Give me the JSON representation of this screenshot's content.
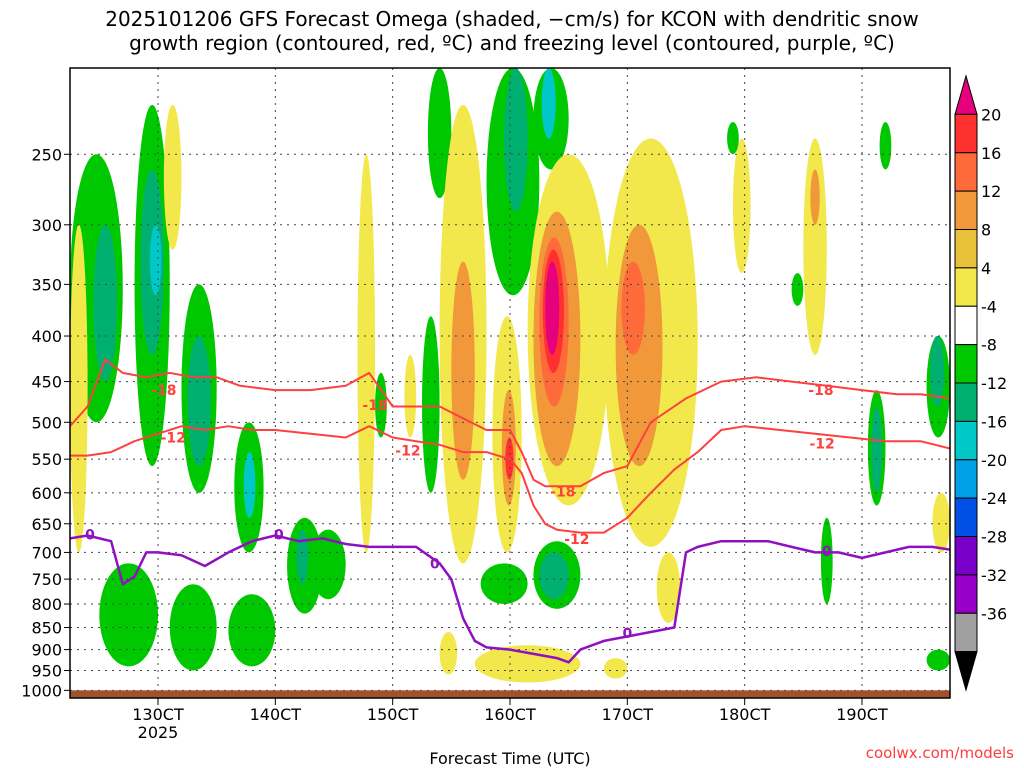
{
  "chart_data": {
    "type": "heatmap",
    "title_line1": "2025101206 GFS Forecast Omega (shaded, −cm/s) for KCON with dendritic snow",
    "title_line2": "growth region (contoured, red, ºC) and freezing level (contoured, purple, ºC)",
    "xlabel": "Forecast Time (UTC)",
    "x_ticks": [
      {
        "value": 130,
        "label": "130CT",
        "sublabel": "2025"
      },
      {
        "value": 140,
        "label": "140CT",
        "sublabel": ""
      },
      {
        "value": 150,
        "label": "150CT",
        "sublabel": ""
      },
      {
        "value": 160,
        "label": "160CT",
        "sublabel": ""
      },
      {
        "value": 170,
        "label": "170CT",
        "sublabel": ""
      },
      {
        "value": 180,
        "label": "180CT",
        "sublabel": ""
      },
      {
        "value": 190,
        "label": "190CT",
        "sublabel": ""
      }
    ],
    "xlim": [
      122.5,
      197.5
    ],
    "y_ticks": [
      250,
      300,
      350,
      400,
      450,
      500,
      550,
      600,
      650,
      700,
      750,
      800,
      850,
      900,
      950,
      1000
    ],
    "ylim": [
      1020,
      200
    ],
    "y_scale": "log-pressure",
    "grid": true,
    "colorbar": {
      "labels": [
        "20",
        "16",
        "12",
        "8",
        "4",
        "-4",
        "-8",
        "-12",
        "-16",
        "-20",
        "-24",
        "-28",
        "-32",
        "-36"
      ],
      "colors": [
        "#e6007e",
        "#ff3030",
        "#ff6a3a",
        "#f0983a",
        "#e8c03a",
        "#f2e84c",
        "#ffffff",
        "#00c800",
        "#00b070",
        "#00c8c8",
        "#00a0e6",
        "#0050e6",
        "#7800c8",
        "#9600c8",
        "#a0a0a0",
        "#000000"
      ]
    },
    "contours": {
      "dgz_minus18": {
        "label": "-18",
        "color": "#ff4040",
        "x": [
          122.5,
          124,
          125.5,
          127,
          129,
          131,
          133,
          135,
          137,
          140,
          143,
          146,
          148,
          150,
          152,
          154,
          156,
          158,
          160,
          161,
          162,
          163,
          164,
          166,
          168,
          170,
          172,
          175,
          178,
          181,
          184,
          187,
          190,
          193,
          195,
          197.5
        ],
        "y": [
          505,
          480,
          425,
          440,
          445,
          440,
          445,
          445,
          455,
          460,
          460,
          455,
          440,
          480,
          480,
          480,
          495,
          510,
          510,
          540,
          580,
          590,
          590,
          590,
          570,
          560,
          500,
          470,
          450,
          445,
          450,
          455,
          460,
          465,
          465,
          470
        ]
      },
      "dgz_minus12": {
        "label": "-12",
        "color": "#ff4040",
        "x": [
          122.5,
          124,
          126,
          128,
          130,
          132,
          134,
          136,
          138,
          140,
          143,
          146,
          148,
          150,
          152,
          154,
          156,
          158,
          160,
          161,
          162,
          163,
          164,
          166,
          168,
          170,
          172,
          174,
          176,
          178,
          180,
          183,
          186,
          189,
          192,
          195,
          197.5
        ],
        "y": [
          545,
          545,
          540,
          525,
          515,
          505,
          510,
          505,
          510,
          510,
          515,
          520,
          505,
          520,
          525,
          530,
          540,
          540,
          550,
          570,
          620,
          650,
          660,
          665,
          665,
          640,
          600,
          565,
          540,
          510,
          505,
          510,
          515,
          520,
          525,
          525,
          535
        ]
      },
      "freezing_level_0C": {
        "label": "0",
        "color": "#9010c0",
        "x": [
          122.5,
          124,
          126,
          127,
          128,
          129,
          130,
          132,
          134,
          136,
          138,
          140,
          142,
          144,
          146,
          148,
          150,
          152,
          154,
          155,
          156,
          157,
          158,
          160,
          162,
          164,
          165,
          166,
          168,
          170,
          172,
          174,
          175,
          176,
          178,
          180,
          182,
          184,
          186,
          188,
          190,
          192,
          194,
          196,
          197.5
        ],
        "y": [
          675,
          670,
          680,
          760,
          745,
          700,
          700,
          705,
          725,
          700,
          680,
          670,
          680,
          675,
          685,
          690,
          690,
          690,
          720,
          750,
          830,
          880,
          895,
          900,
          910,
          920,
          930,
          900,
          880,
          870,
          860,
          850,
          700,
          690,
          680,
          680,
          680,
          690,
          700,
          700,
          710,
          700,
          690,
          690,
          695
        ]
      }
    },
    "contour_labels": [
      {
        "contour": "dgz_minus18",
        "x": 130.5,
        "y": 460
      },
      {
        "contour": "dgz_minus18",
        "x": 148.5,
        "y": 478
      },
      {
        "contour": "dgz_minus18",
        "x": 164.5,
        "y": 598
      },
      {
        "contour": "dgz_minus18",
        "x": 186.5,
        "y": 460
      },
      {
        "contour": "dgz_minus12",
        "x": 131.3,
        "y": 520
      },
      {
        "contour": "dgz_minus12",
        "x": 151.3,
        "y": 538
      },
      {
        "contour": "dgz_minus12",
        "x": 165.7,
        "y": 676
      },
      {
        "contour": "dgz_minus12",
        "x": 186.6,
        "y": 528
      },
      {
        "contour": "freezing_level_0C",
        "x": 124.2,
        "y": 668
      },
      {
        "contour": "freezing_level_0C",
        "x": 140.3,
        "y": 668
      },
      {
        "contour": "freezing_level_0C",
        "x": 153.6,
        "y": 720
      },
      {
        "contour": "freezing_level_0C",
        "x": 170,
        "y": 862
      },
      {
        "contour": "freezing_level_0C",
        "x": 187,
        "y": 697
      }
    ],
    "omega_regions": [
      {
        "cls": "-8",
        "x": 122.5,
        "x2": 127,
        "p": 250,
        "p2": 500
      },
      {
        "cls": "-12",
        "x": 124.5,
        "x2": 126.5,
        "p": 300,
        "p2": 450
      },
      {
        "cls": "-8",
        "x": 128,
        "x2": 131,
        "p": 220,
        "p2": 560
      },
      {
        "cls": "-12",
        "x": 128.5,
        "x2": 130.5,
        "p": 260,
        "p2": 420
      },
      {
        "cls": "-16",
        "x": 129.3,
        "x2": 130.3,
        "p": 300,
        "p2": 360
      },
      {
        "cls": "-8",
        "x": 132,
        "x2": 135,
        "p": 350,
        "p2": 600
      },
      {
        "cls": "-12",
        "x": 132.5,
        "x2": 134.5,
        "p": 400,
        "p2": 560
      },
      {
        "cls": "-8",
        "x": 136.5,
        "x2": 139,
        "p": 500,
        "p2": 700
      },
      {
        "cls": "-16",
        "x": 137.3,
        "x2": 138.3,
        "p": 540,
        "p2": 640
      },
      {
        "cls": "-8",
        "x": 141,
        "x2": 144,
        "p": 640,
        "p2": 820
      },
      {
        "cls": "-12",
        "x": 141.8,
        "x2": 142.8,
        "p": 660,
        "p2": 760
      },
      {
        "cls": "-8",
        "x": 125,
        "x2": 130,
        "p": 720,
        "p2": 940
      },
      {
        "cls": "-8",
        "x": 131,
        "x2": 135,
        "p": 760,
        "p2": 950
      },
      {
        "cls": "-8",
        "x": 136,
        "x2": 140,
        "p": 780,
        "p2": 940
      },
      {
        "cls": "-8",
        "x": 143,
        "x2": 146,
        "p": 660,
        "p2": 790
      },
      {
        "cls": "4",
        "x": 122.5,
        "x2": 124,
        "p": 300,
        "p2": 700
      },
      {
        "cls": "4",
        "x": 130.5,
        "x2": 132,
        "p": 220,
        "p2": 320
      },
      {
        "cls": "4",
        "x": 147,
        "x2": 148.5,
        "p": 250,
        "p2": 700
      },
      {
        "cls": "-8",
        "x": 148.5,
        "x2": 149.5,
        "p": 440,
        "p2": 520
      },
      {
        "cls": "4",
        "x": 151,
        "x2": 152,
        "p": 420,
        "p2": 520
      },
      {
        "cls": "-8",
        "x": 152.5,
        "x2": 154,
        "p": 380,
        "p2": 600
      },
      {
        "cls": "-8",
        "x": 153,
        "x2": 155,
        "p": 200,
        "p2": 280
      },
      {
        "cls": "4",
        "x": 154,
        "x2": 158,
        "p": 220,
        "p2": 720
      },
      {
        "cls": "8",
        "x": 155,
        "x2": 157,
        "p": 330,
        "p2": 580
      },
      {
        "cls": "-8",
        "x": 158,
        "x2": 162.5,
        "p": 200,
        "p2": 360
      },
      {
        "cls": "-12",
        "x": 159.5,
        "x2": 161.5,
        "p": 200,
        "p2": 290
      },
      {
        "cls": "-8",
        "x": 162,
        "x2": 165,
        "p": 200,
        "p2": 260
      },
      {
        "cls": "-16",
        "x": 162.7,
        "x2": 163.9,
        "p": 200,
        "p2": 240
      },
      {
        "cls": "4",
        "x": 158.5,
        "x2": 161,
        "p": 380,
        "p2": 700
      },
      {
        "cls": "8",
        "x": 159.3,
        "x2": 160.5,
        "p": 460,
        "p2": 620
      },
      {
        "cls": "16",
        "x": 159.6,
        "x2": 160.3,
        "p": 520,
        "p2": 580
      },
      {
        "cls": "4",
        "x": 161.5,
        "x2": 168.5,
        "p": 250,
        "p2": 620
      },
      {
        "cls": "8",
        "x": 162,
        "x2": 166,
        "p": 290,
        "p2": 560
      },
      {
        "cls": "12",
        "x": 162.5,
        "x2": 165,
        "p": 310,
        "p2": 480
      },
      {
        "cls": "16",
        "x": 162.8,
        "x2": 164.6,
        "p": 320,
        "p2": 440
      },
      {
        "cls": "20",
        "x": 163,
        "x2": 164.2,
        "p": 330,
        "p2": 420
      },
      {
        "cls": "4",
        "x": 168,
        "x2": 176,
        "p": 240,
        "p2": 690
      },
      {
        "cls": "8",
        "x": 169,
        "x2": 173,
        "p": 300,
        "p2": 560
      },
      {
        "cls": "12",
        "x": 169.5,
        "x2": 171.5,
        "p": 330,
        "p2": 420
      },
      {
        "cls": "4",
        "x": 172.5,
        "x2": 174.5,
        "p": 700,
        "p2": 840
      },
      {
        "cls": "4",
        "x": 179,
        "x2": 180.5,
        "p": 240,
        "p2": 340
      },
      {
        "cls": "4",
        "x": 185,
        "x2": 187,
        "p": 240,
        "p2": 420
      },
      {
        "cls": "8",
        "x": 185.6,
        "x2": 186.4,
        "p": 260,
        "p2": 300
      },
      {
        "cls": "-8",
        "x": 162,
        "x2": 166,
        "p": 680,
        "p2": 810
      },
      {
        "cls": "-12",
        "x": 162.5,
        "x2": 165,
        "p": 700,
        "p2": 790
      },
      {
        "cls": "-8",
        "x": 157.5,
        "x2": 161.5,
        "p": 720,
        "p2": 800
      },
      {
        "cls": "4",
        "x": 157,
        "x2": 166,
        "p": 890,
        "p2": 980
      },
      {
        "cls": "4",
        "x": 154,
        "x2": 155.5,
        "p": 860,
        "p2": 960
      },
      {
        "cls": "4",
        "x": 168,
        "x2": 170,
        "p": 920,
        "p2": 970
      },
      {
        "cls": "-8",
        "x": 186.5,
        "x2": 187.5,
        "p": 640,
        "p2": 800
      },
      {
        "cls": "-8",
        "x": 190.5,
        "x2": 192,
        "p": 460,
        "p2": 620
      },
      {
        "cls": "-12",
        "x": 190.8,
        "x2": 191.7,
        "p": 480,
        "p2": 600
      },
      {
        "cls": "-8",
        "x": 195.5,
        "x2": 197.5,
        "p": 400,
        "p2": 520
      },
      {
        "cls": "-12",
        "x": 195.8,
        "x2": 197,
        "p": 400,
        "p2": 480
      },
      {
        "cls": "-8",
        "x": 195.5,
        "x2": 197.5,
        "p": 900,
        "p2": 950
      },
      {
        "cls": "4",
        "x": 196,
        "x2": 197.5,
        "p": 600,
        "p2": 700
      },
      {
        "cls": "-8",
        "x": 184,
        "x2": 185,
        "p": 340,
        "p2": 370
      },
      {
        "cls": "-8",
        "x": 191.5,
        "x2": 192.5,
        "p": 230,
        "p2": 260
      },
      {
        "cls": "-8",
        "x": 178.5,
        "x2": 179.5,
        "p": 230,
        "p2": 250
      }
    ],
    "ground_below": 1000
  },
  "credit": "coolwx.com/models"
}
